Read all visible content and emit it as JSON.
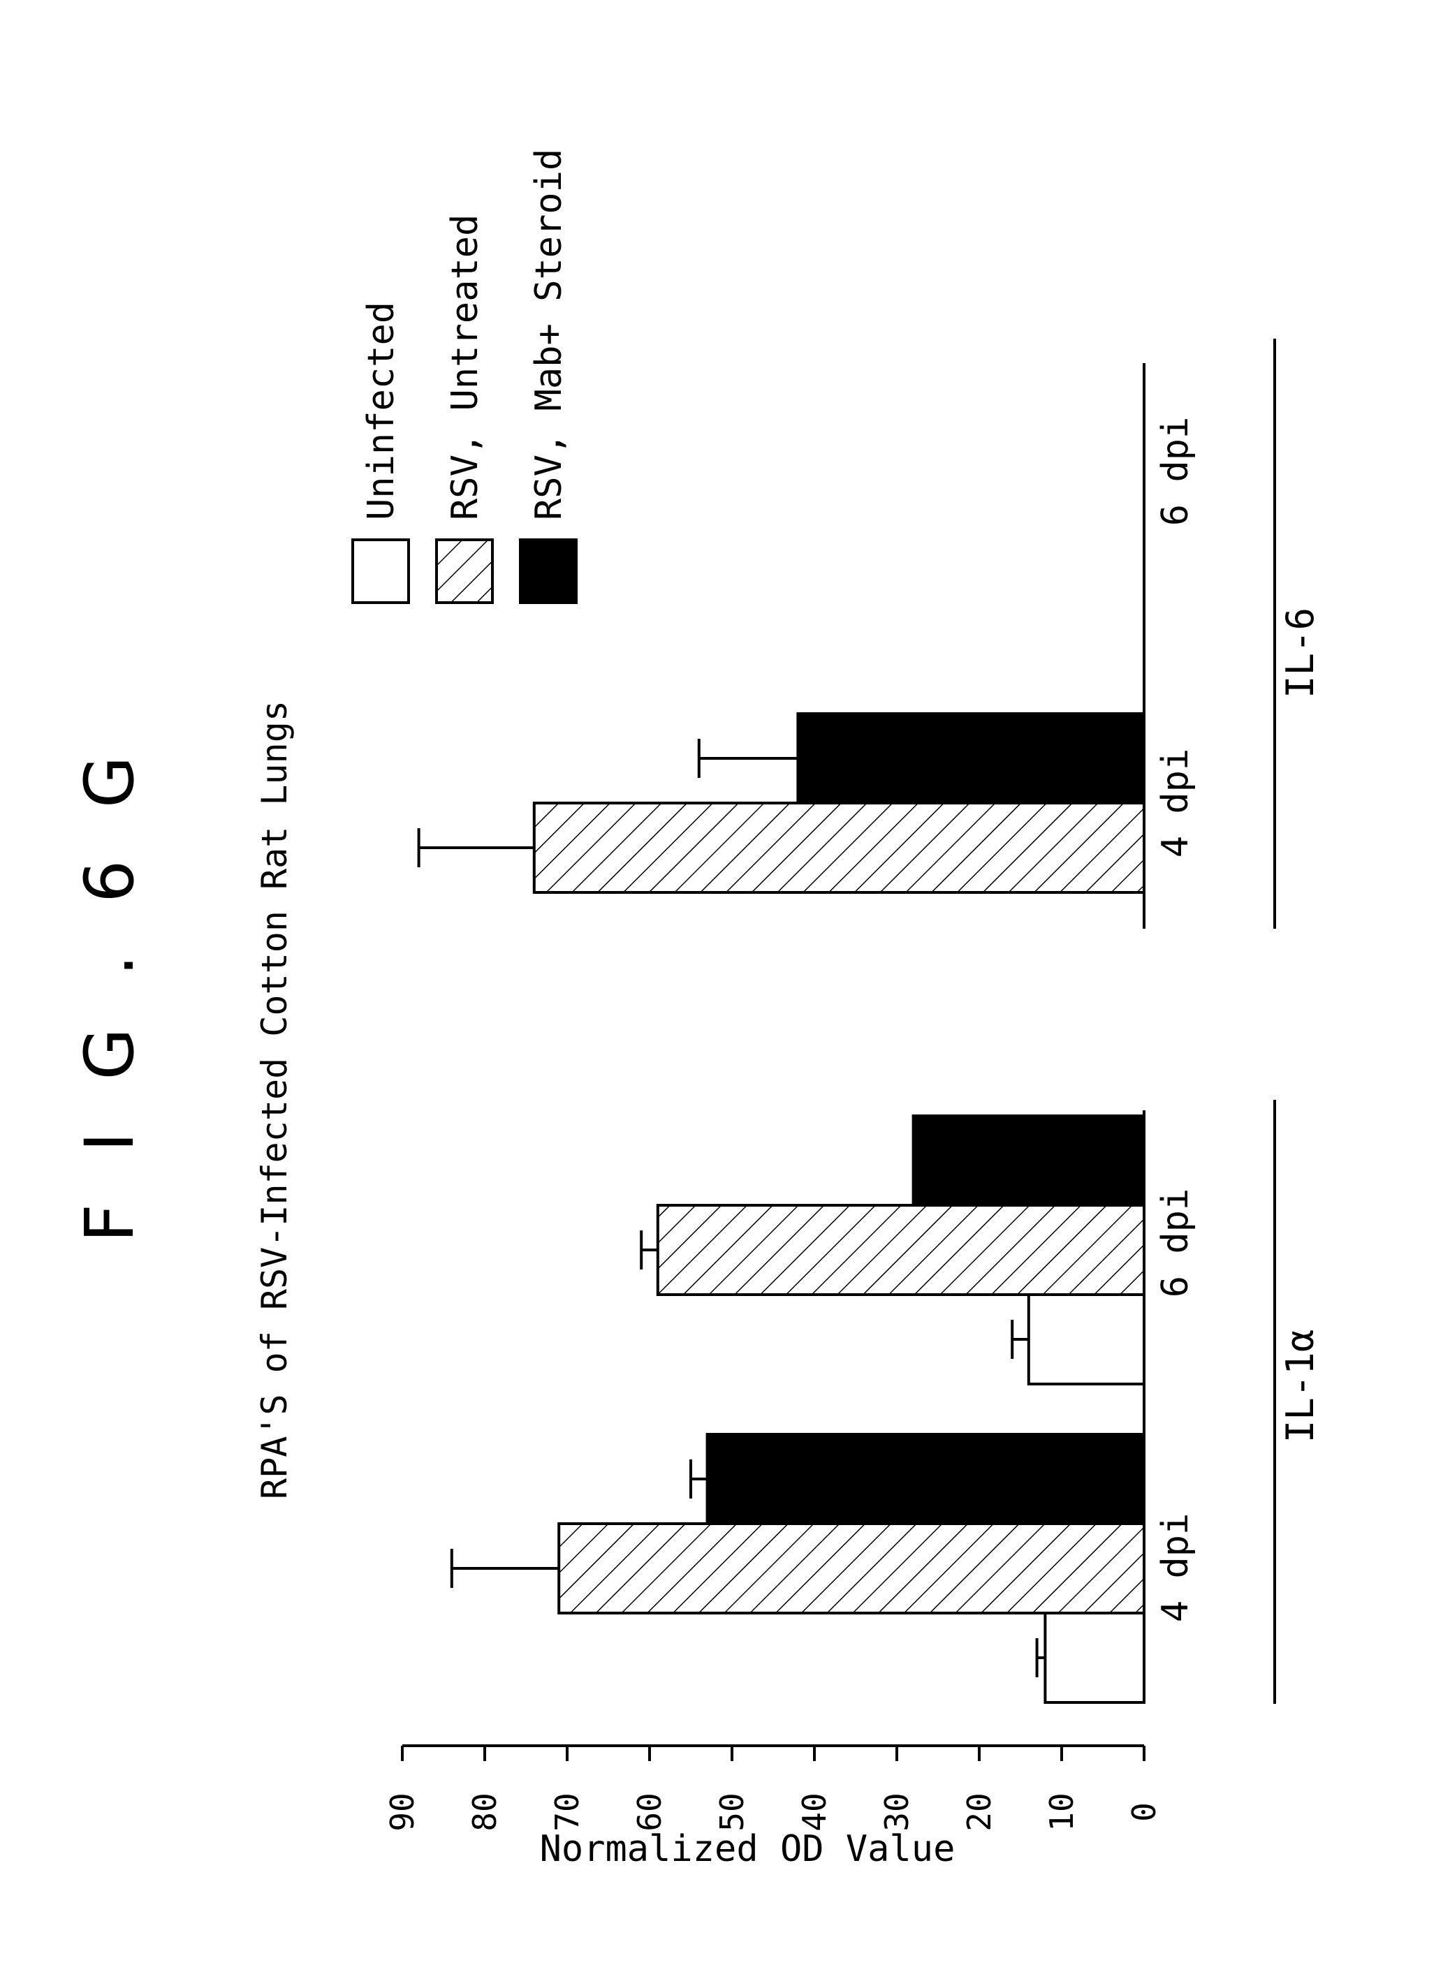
{
  "figure_label": "F I G . 6 G",
  "chart_data": {
    "type": "bar",
    "title": "RPA'S of RSV-Infected Cotton Rat Lungs",
    "ylabel": "Normalized OD Value",
    "ylim": [
      0,
      90
    ],
    "yticks": [
      "0",
      "10",
      "20",
      "30",
      "40",
      "50",
      "60",
      "70",
      "80",
      "90"
    ],
    "groups": [
      {
        "label": "IL-1α",
        "timepoints": [
          {
            "label": "4 dpi",
            "bars": [
              {
                "series": "Uninfected",
                "value": 12,
                "error": 1
              },
              {
                "series": "RSV, Untreated",
                "value": 71,
                "error": 13
              },
              {
                "series": "RSV, Mab+ Steroid",
                "value": 53,
                "error": 2
              }
            ]
          },
          {
            "label": "6 dpi",
            "bars": [
              {
                "series": "Uninfected",
                "value": 14,
                "error": 2
              },
              {
                "series": "RSV, Untreated",
                "value": 59,
                "error": 2
              },
              {
                "series": "RSV, Mab+ Steroid",
                "value": 28,
                "error": 0
              }
            ]
          }
        ]
      },
      {
        "label": "IL-6",
        "timepoints": [
          {
            "label": "4 dpi",
            "bars": [
              {
                "series": "RSV, Untreated",
                "value": 74,
                "error": 14
              },
              {
                "series": "RSV, Mab+ Steroid",
                "value": 42,
                "error": 12
              }
            ]
          },
          {
            "label": "6 dpi",
            "bars": []
          }
        ]
      }
    ],
    "legend": [
      {
        "name": "Uninfected",
        "fill": "white"
      },
      {
        "name": "RSV, Untreated",
        "fill": "hatched"
      },
      {
        "name": "RSV, Mab+ Steroid",
        "fill": "black"
      }
    ],
    "legend_position": "top-right",
    "grid": false
  }
}
